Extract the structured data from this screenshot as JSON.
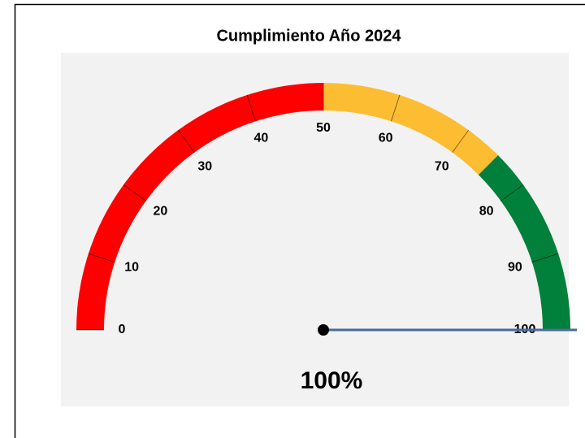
{
  "chart_data": {
    "type": "gauge",
    "title": "Cumplimiento Año 2024",
    "value": 100,
    "value_label": "100%",
    "range": [
      0,
      100
    ],
    "ticks": [
      0,
      10,
      20,
      30,
      40,
      50,
      60,
      70,
      80,
      90,
      100
    ],
    "bands": [
      {
        "from": 0,
        "to": 50,
        "color": "#ff0000"
      },
      {
        "from": 50,
        "to": 75,
        "color": "#fdbd33"
      },
      {
        "from": 75,
        "to": 100,
        "color": "#00803a"
      }
    ],
    "needle_color": "#4a6a9a"
  }
}
